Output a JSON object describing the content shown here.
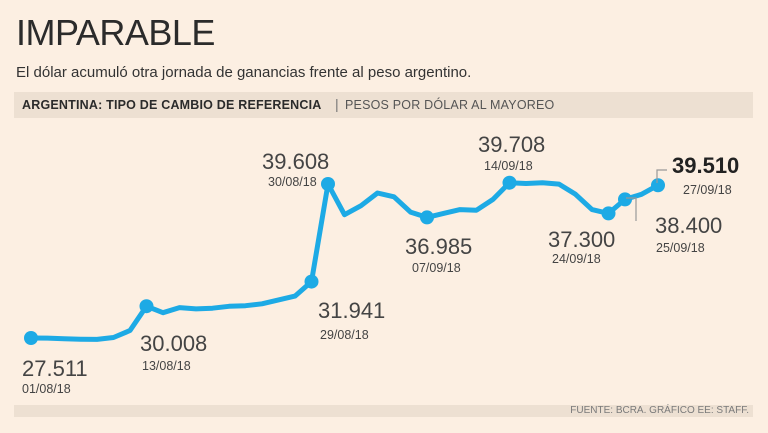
{
  "header": {
    "title": "IMPARABLE",
    "subtitle": "El dólar acumuló otra jornada de ganancias frente al peso argentino."
  },
  "band": {
    "bold": "ARGENTINA: TIPO DE CAMBIO DE REFERENCIA",
    "separator": "|",
    "light": "PESOS POR DÓLAR AL MAYOREO"
  },
  "footer": {
    "source": "FUENTE: BCRA. GRÁFICO EE: STAFF."
  },
  "colors": {
    "line": "#1daae5",
    "background": "#fcefe2",
    "band": "#ede0d2",
    "leader": "#999999"
  },
  "chart_data": {
    "type": "line",
    "title": "ARGENTINA: TIPO DE CAMBIO DE REFERENCIA",
    "ylabel": "PESOS POR DÓLAR AL MAYOREO",
    "xlabel": "",
    "ylim": [
      26.5,
      41.0
    ],
    "series": [
      {
        "name": "Tipo de cambio",
        "values": [
          27.511,
          27.5,
          27.45,
          27.42,
          27.4,
          27.55,
          28.1,
          30.008,
          29.5,
          29.9,
          29.8,
          29.85,
          30.0,
          30.05,
          30.2,
          30.5,
          30.8,
          31.941,
          39.608,
          37.2,
          37.9,
          38.9,
          38.6,
          37.4,
          36.985,
          37.3,
          37.6,
          37.55,
          38.4,
          39.708,
          39.65,
          39.7,
          39.6,
          38.8,
          37.6,
          37.3,
          38.4,
          38.8,
          39.51
        ]
      }
    ],
    "annotations": [
      {
        "index": 0,
        "value": "27.511",
        "date": "01/08/18",
        "bold": false
      },
      {
        "index": 7,
        "value": "30.008",
        "date": "13/08/18",
        "bold": false
      },
      {
        "index": 17,
        "value": "31.941",
        "date": "29/08/18",
        "bold": false
      },
      {
        "index": 18,
        "value": "39.608",
        "date": "30/08/18",
        "bold": false
      },
      {
        "index": 24,
        "value": "36.985",
        "date": "07/09/18",
        "bold": false
      },
      {
        "index": 29,
        "value": "39.708",
        "date": "14/09/18",
        "bold": false
      },
      {
        "index": 35,
        "value": "37.300",
        "date": "24/09/18",
        "bold": false
      },
      {
        "index": 36,
        "value": "38.400",
        "date": "25/09/18",
        "bold": false
      },
      {
        "index": 38,
        "value": "39.510",
        "date": "27/09/18",
        "bold": true
      }
    ]
  }
}
